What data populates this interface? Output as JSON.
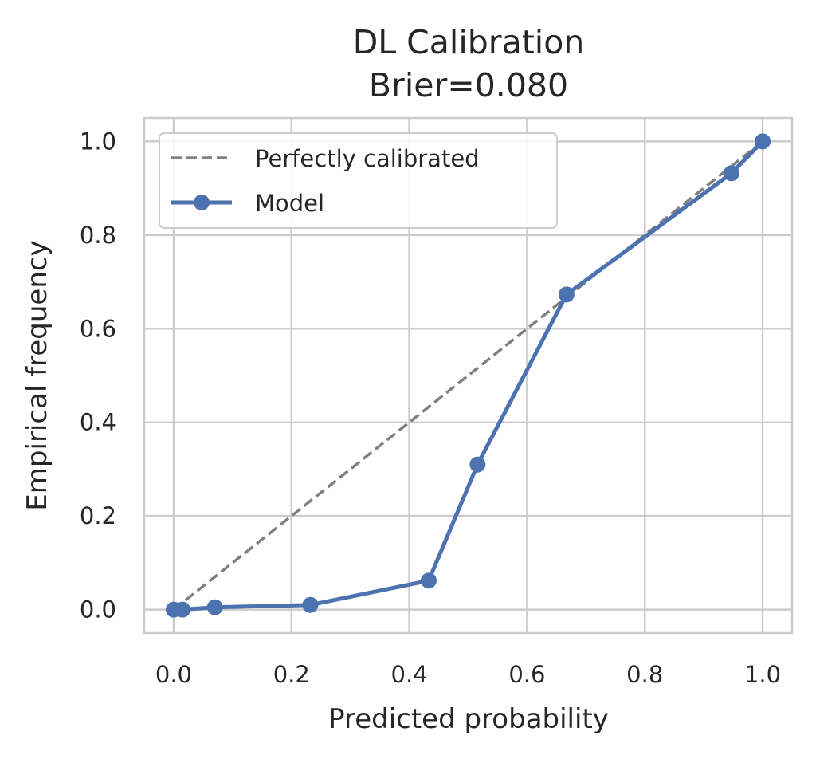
{
  "chart_data": {
    "type": "line",
    "title": "DL Calibration",
    "subtitle": "Brier=0.080",
    "xlabel": "Predicted probability",
    "ylabel": "Empirical frequency",
    "xlim": [
      -0.05,
      1.05
    ],
    "ylim": [
      -0.05,
      1.05
    ],
    "xticks": [
      0.0,
      0.2,
      0.4,
      0.6,
      0.8,
      1.0
    ],
    "yticks": [
      0.0,
      0.2,
      0.4,
      0.6,
      0.8,
      1.0
    ],
    "xtick_labels": [
      "0.0",
      "0.2",
      "0.4",
      "0.6",
      "0.8",
      "1.0"
    ],
    "ytick_labels": [
      "0.0",
      "0.2",
      "0.4",
      "0.6",
      "0.8",
      "1.0"
    ],
    "grid": true,
    "legend_position": "top-left",
    "series": [
      {
        "name": "Perfectly calibrated",
        "style": "dashed",
        "color": "#808080",
        "x": [
          0,
          1
        ],
        "y": [
          0,
          1
        ]
      },
      {
        "name": "Model",
        "style": "line-marker",
        "color": "#4c72b0",
        "x": [
          0.0,
          0.015,
          0.07,
          0.232,
          0.433,
          0.516,
          0.667,
          0.947,
          1.0
        ],
        "y": [
          0.0,
          0.0,
          0.005,
          0.01,
          0.062,
          0.31,
          0.673,
          0.932,
          1.0
        ]
      }
    ]
  }
}
